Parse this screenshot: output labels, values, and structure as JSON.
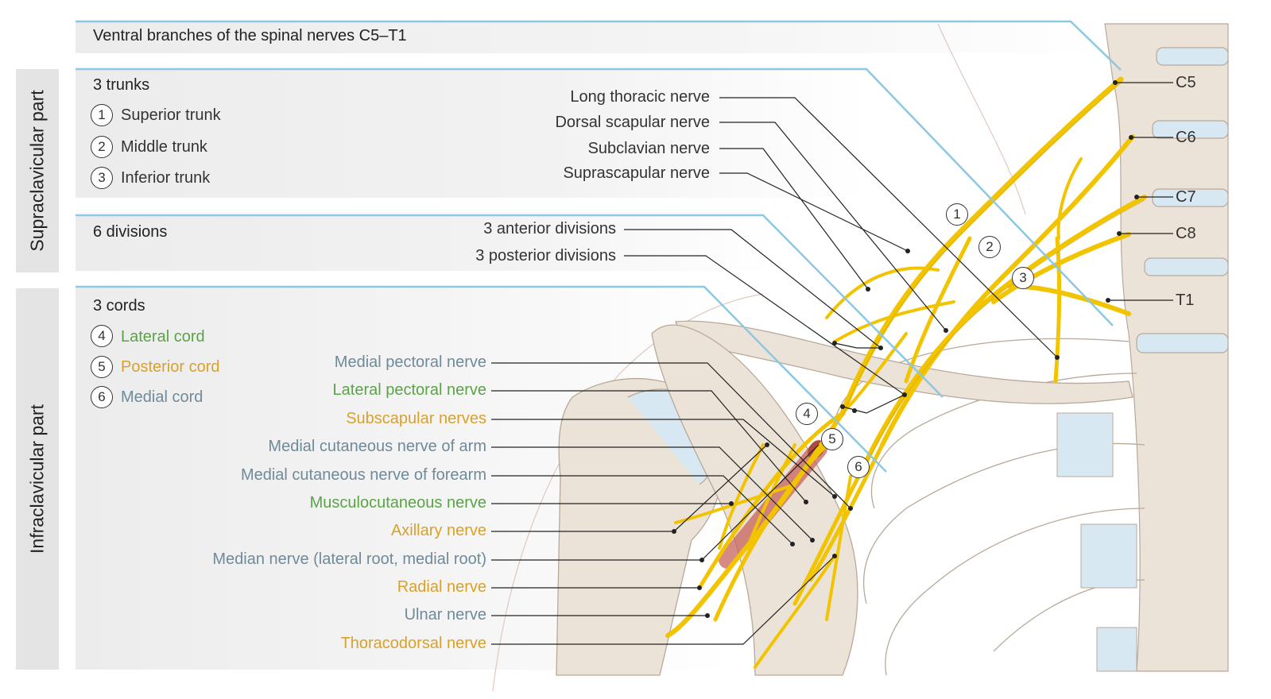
{
  "title": "Ventral branches of the spinal nerves C5–T1",
  "side_labels": {
    "supra": "Supraclavicular part",
    "infra": "Infraclavicular part"
  },
  "trunks": {
    "heading": "3 trunks",
    "items": [
      {
        "num": "1",
        "label": "Superior trunk"
      },
      {
        "num": "2",
        "label": "Middle trunk"
      },
      {
        "num": "3",
        "label": "Inferior trunk"
      }
    ]
  },
  "divisions": {
    "heading": "6 divisions"
  },
  "cords": {
    "heading": "3 cords",
    "items": [
      {
        "num": "4",
        "label": "Lateral cord",
        "color": "#5aa347"
      },
      {
        "num": "5",
        "label": "Posterior cord",
        "color": "#d9a12a"
      },
      {
        "num": "6",
        "label": "Medial cord",
        "color": "#6f8a9a"
      }
    ]
  },
  "supra_labels": [
    "Long thoracic nerve",
    "Dorsal scapular nerve",
    "Subclavian nerve",
    "Suprascapular nerve"
  ],
  "division_labels": [
    "3 anterior divisions",
    "3 posterior divisions"
  ],
  "infra_labels": [
    {
      "text": "Medial pectoral nerve",
      "color": "#6f8a9a"
    },
    {
      "text": "Lateral pectoral nerve",
      "color": "#5aa347"
    },
    {
      "text": "Subscapular nerves",
      "color": "#d9a12a"
    },
    {
      "text": "Medial cutaneous nerve of arm",
      "color": "#6f8a9a"
    },
    {
      "text": "Medial cutaneous nerve of forearm",
      "color": "#6f8a9a"
    },
    {
      "text": "Musculocutaneous nerve",
      "color": "#5aa347"
    },
    {
      "text": "Axillary nerve",
      "color": "#d9a12a"
    },
    {
      "text": "Median nerve (lateral root, medial root)",
      "color": "#6f8a9a"
    },
    {
      "text": "Radial nerve",
      "color": "#d9a12a"
    },
    {
      "text": "Ulnar nerve",
      "color": "#6f8a9a"
    },
    {
      "text": "Thoracodorsal nerve",
      "color": "#d9a12a"
    }
  ],
  "spinal_levels": [
    "C5",
    "C6",
    "C7",
    "C8",
    "T1"
  ],
  "colors": {
    "nerve": "#f2c400",
    "nerve_dark": "#c9a000",
    "bone": "#ece3d8",
    "bone_outline": "#b8a898",
    "cartilage": "#d8e8f2",
    "artery": "#c8645a",
    "guide_blue": "#8cc8e2",
    "leader": "#222222"
  }
}
